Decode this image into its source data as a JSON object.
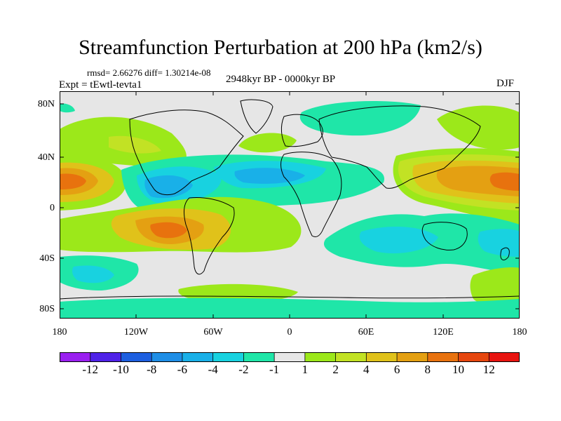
{
  "title": "Streamfunction Perturbation at 200 hPa (km2/s)",
  "stats": "rmsd= 2.66276 diff= 1.30214e-08",
  "experiment": "Expt = tEwtl-tevta1",
  "period": "2948kyr BP - 0000kyr BP",
  "season": "DJF",
  "lat_labels": [
    "80N",
    "40N",
    "0",
    "40S",
    "80S"
  ],
  "lon_labels": [
    "180",
    "120W",
    "60W",
    "0",
    "60E",
    "120E",
    "180"
  ],
  "colorbar": {
    "labels": [
      "-12",
      "-10",
      "-8",
      "-6",
      "-4",
      "-2",
      "-1",
      "1",
      "2",
      "4",
      "6",
      "8",
      "10",
      "12"
    ],
    "colors": [
      "#9a1ff0",
      "#4f22e8",
      "#1d5fe0",
      "#1e8ee6",
      "#19b0e8",
      "#18d2e0",
      "#1fe6a8",
      "#e6e6e6",
      "#9ce81a",
      "#c2e224",
      "#e0c21a",
      "#e4a012",
      "#e8720e",
      "#e6460e",
      "#e81410"
    ]
  }
}
